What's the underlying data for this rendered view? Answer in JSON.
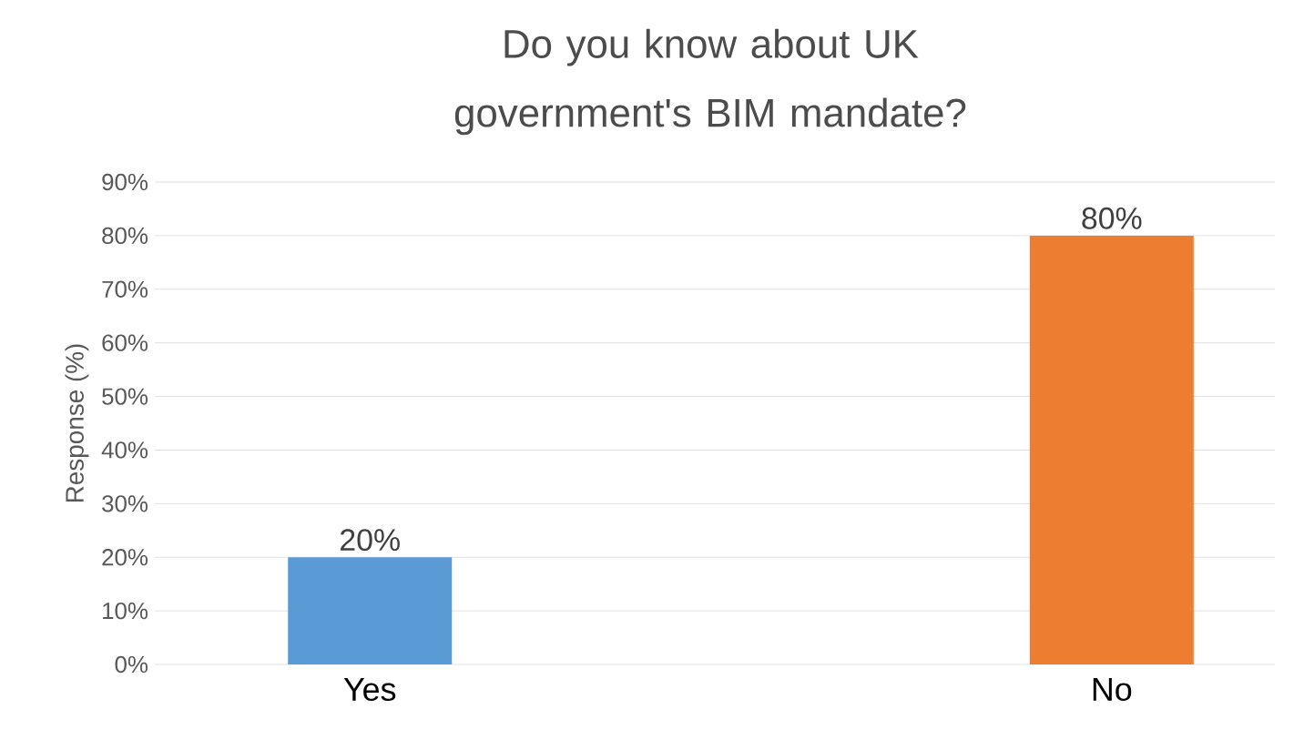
{
  "chart_data": {
    "type": "bar",
    "title": "Do you know about UK government's BIM mandate?",
    "ylabel": "Response (%)",
    "categories": [
      "Yes",
      "No"
    ],
    "values": [
      20,
      80
    ],
    "colors": [
      "#5b9bd5",
      "#ed7d31"
    ],
    "value_labels": [
      "20%",
      "80%"
    ],
    "ylim": [
      0,
      90
    ],
    "yticks": [
      {
        "value": 0,
        "label": "0%"
      },
      {
        "value": 10,
        "label": "10%"
      },
      {
        "value": 20,
        "label": "20%"
      },
      {
        "value": 30,
        "label": "30%"
      },
      {
        "value": 40,
        "label": "40%"
      },
      {
        "value": 50,
        "label": "50%"
      },
      {
        "value": 60,
        "label": "60%"
      },
      {
        "value": 70,
        "label": "70%"
      },
      {
        "value": 80,
        "label": "80%"
      },
      {
        "value": 90,
        "label": "90%"
      }
    ],
    "grid": "y"
  }
}
